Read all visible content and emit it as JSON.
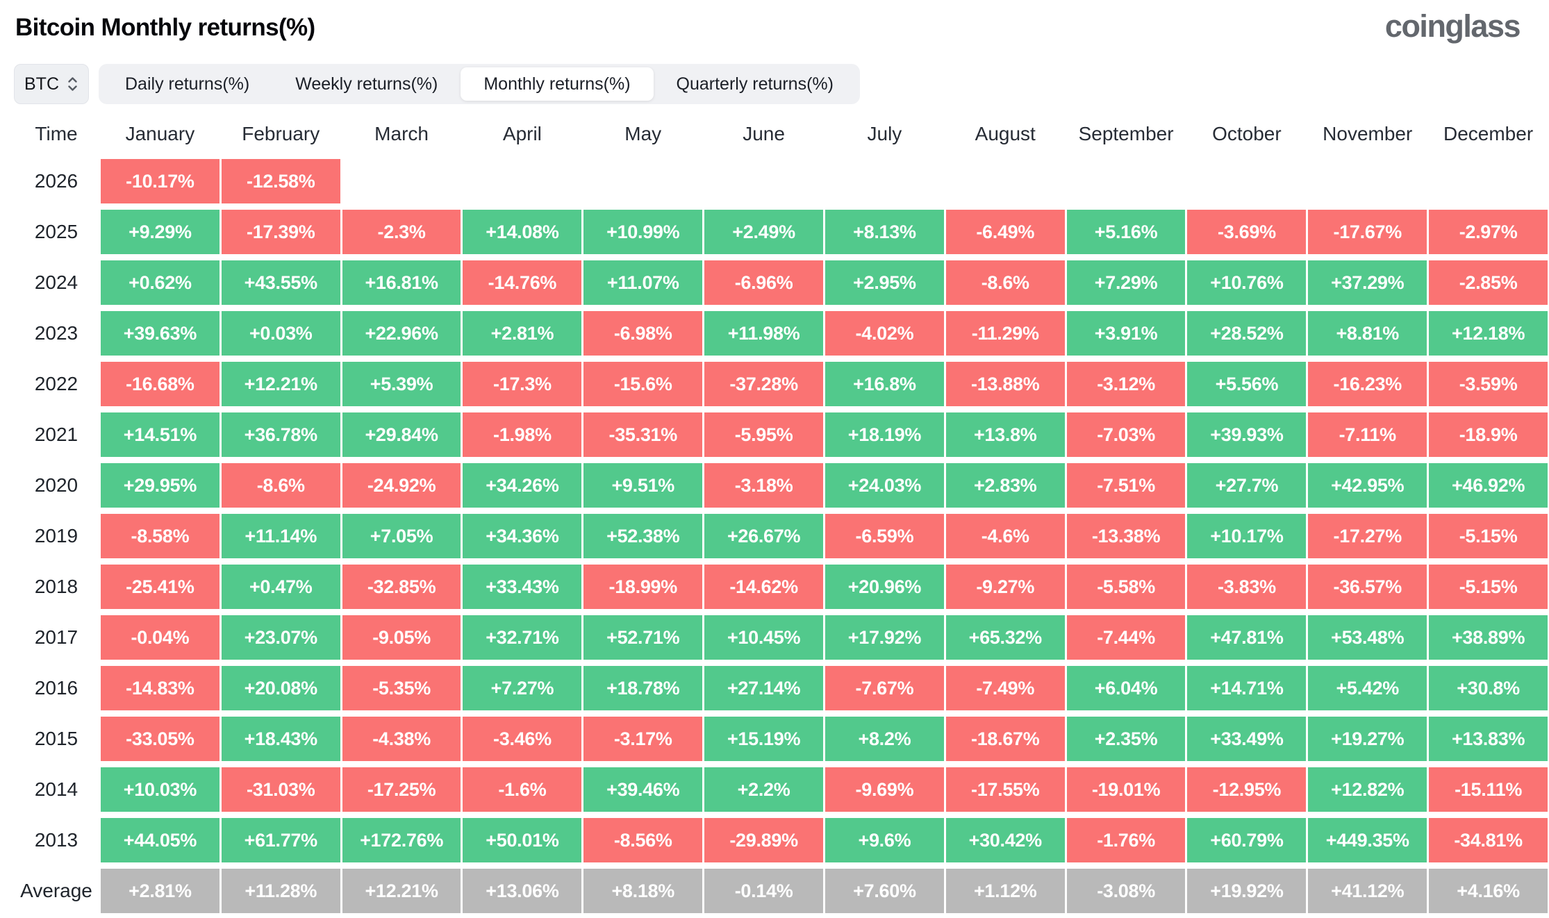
{
  "page": {
    "title": "Bitcoin Monthly returns(%)",
    "logo": "coinglass"
  },
  "controls": {
    "coin_selector": {
      "value": "BTC"
    },
    "tabs": [
      {
        "label": "Daily returns(%)",
        "active": false
      },
      {
        "label": "Weekly returns(%)",
        "active": false
      },
      {
        "label": "Monthly returns(%)",
        "active": true
      },
      {
        "label": "Quarterly returns(%)",
        "active": false
      }
    ]
  },
  "colors": {
    "positive": "#52c98c",
    "negative": "#fa7373",
    "average": "#b9b9b9"
  },
  "table": {
    "columns": [
      "Time",
      "January",
      "February",
      "March",
      "April",
      "May",
      "June",
      "July",
      "August",
      "September",
      "October",
      "November",
      "December"
    ],
    "rows": [
      {
        "label": "2026",
        "cells": [
          {
            "v": "-10.17%",
            "c": "neg"
          },
          {
            "v": "-12.58%",
            "c": "neg"
          },
          null,
          null,
          null,
          null,
          null,
          null,
          null,
          null,
          null,
          null
        ]
      },
      {
        "label": "2025",
        "cells": [
          {
            "v": "+9.29%",
            "c": "pos"
          },
          {
            "v": "-17.39%",
            "c": "neg"
          },
          {
            "v": "-2.3%",
            "c": "neg"
          },
          {
            "v": "+14.08%",
            "c": "pos"
          },
          {
            "v": "+10.99%",
            "c": "pos"
          },
          {
            "v": "+2.49%",
            "c": "pos"
          },
          {
            "v": "+8.13%",
            "c": "pos"
          },
          {
            "v": "-6.49%",
            "c": "neg"
          },
          {
            "v": "+5.16%",
            "c": "pos"
          },
          {
            "v": "-3.69%",
            "c": "neg"
          },
          {
            "v": "-17.67%",
            "c": "neg"
          },
          {
            "v": "-2.97%",
            "c": "neg"
          }
        ]
      },
      {
        "label": "2024",
        "cells": [
          {
            "v": "+0.62%",
            "c": "pos"
          },
          {
            "v": "+43.55%",
            "c": "pos"
          },
          {
            "v": "+16.81%",
            "c": "pos"
          },
          {
            "v": "-14.76%",
            "c": "neg"
          },
          {
            "v": "+11.07%",
            "c": "pos"
          },
          {
            "v": "-6.96%",
            "c": "neg"
          },
          {
            "v": "+2.95%",
            "c": "pos"
          },
          {
            "v": "-8.6%",
            "c": "neg"
          },
          {
            "v": "+7.29%",
            "c": "pos"
          },
          {
            "v": "+10.76%",
            "c": "pos"
          },
          {
            "v": "+37.29%",
            "c": "pos"
          },
          {
            "v": "-2.85%",
            "c": "neg"
          }
        ]
      },
      {
        "label": "2023",
        "cells": [
          {
            "v": "+39.63%",
            "c": "pos"
          },
          {
            "v": "+0.03%",
            "c": "pos"
          },
          {
            "v": "+22.96%",
            "c": "pos"
          },
          {
            "v": "+2.81%",
            "c": "pos"
          },
          {
            "v": "-6.98%",
            "c": "neg"
          },
          {
            "v": "+11.98%",
            "c": "pos"
          },
          {
            "v": "-4.02%",
            "c": "neg"
          },
          {
            "v": "-11.29%",
            "c": "neg"
          },
          {
            "v": "+3.91%",
            "c": "pos"
          },
          {
            "v": "+28.52%",
            "c": "pos"
          },
          {
            "v": "+8.81%",
            "c": "pos"
          },
          {
            "v": "+12.18%",
            "c": "pos"
          }
        ]
      },
      {
        "label": "2022",
        "cells": [
          {
            "v": "-16.68%",
            "c": "neg"
          },
          {
            "v": "+12.21%",
            "c": "pos"
          },
          {
            "v": "+5.39%",
            "c": "pos"
          },
          {
            "v": "-17.3%",
            "c": "neg"
          },
          {
            "v": "-15.6%",
            "c": "neg"
          },
          {
            "v": "-37.28%",
            "c": "neg"
          },
          {
            "v": "+16.8%",
            "c": "pos"
          },
          {
            "v": "-13.88%",
            "c": "neg"
          },
          {
            "v": "-3.12%",
            "c": "neg"
          },
          {
            "v": "+5.56%",
            "c": "pos"
          },
          {
            "v": "-16.23%",
            "c": "neg"
          },
          {
            "v": "-3.59%",
            "c": "neg"
          }
        ]
      },
      {
        "label": "2021",
        "cells": [
          {
            "v": "+14.51%",
            "c": "pos"
          },
          {
            "v": "+36.78%",
            "c": "pos"
          },
          {
            "v": "+29.84%",
            "c": "pos"
          },
          {
            "v": "-1.98%",
            "c": "neg"
          },
          {
            "v": "-35.31%",
            "c": "neg"
          },
          {
            "v": "-5.95%",
            "c": "neg"
          },
          {
            "v": "+18.19%",
            "c": "pos"
          },
          {
            "v": "+13.8%",
            "c": "pos"
          },
          {
            "v": "-7.03%",
            "c": "neg"
          },
          {
            "v": "+39.93%",
            "c": "pos"
          },
          {
            "v": "-7.11%",
            "c": "neg"
          },
          {
            "v": "-18.9%",
            "c": "neg"
          }
        ]
      },
      {
        "label": "2020",
        "cells": [
          {
            "v": "+29.95%",
            "c": "pos"
          },
          {
            "v": "-8.6%",
            "c": "neg"
          },
          {
            "v": "-24.92%",
            "c": "neg"
          },
          {
            "v": "+34.26%",
            "c": "pos"
          },
          {
            "v": "+9.51%",
            "c": "pos"
          },
          {
            "v": "-3.18%",
            "c": "neg"
          },
          {
            "v": "+24.03%",
            "c": "pos"
          },
          {
            "v": "+2.83%",
            "c": "pos"
          },
          {
            "v": "-7.51%",
            "c": "neg"
          },
          {
            "v": "+27.7%",
            "c": "pos"
          },
          {
            "v": "+42.95%",
            "c": "pos"
          },
          {
            "v": "+46.92%",
            "c": "pos"
          }
        ]
      },
      {
        "label": "2019",
        "cells": [
          {
            "v": "-8.58%",
            "c": "neg"
          },
          {
            "v": "+11.14%",
            "c": "pos"
          },
          {
            "v": "+7.05%",
            "c": "pos"
          },
          {
            "v": "+34.36%",
            "c": "pos"
          },
          {
            "v": "+52.38%",
            "c": "pos"
          },
          {
            "v": "+26.67%",
            "c": "pos"
          },
          {
            "v": "-6.59%",
            "c": "neg"
          },
          {
            "v": "-4.6%",
            "c": "neg"
          },
          {
            "v": "-13.38%",
            "c": "neg"
          },
          {
            "v": "+10.17%",
            "c": "pos"
          },
          {
            "v": "-17.27%",
            "c": "neg"
          },
          {
            "v": "-5.15%",
            "c": "neg"
          }
        ]
      },
      {
        "label": "2018",
        "cells": [
          {
            "v": "-25.41%",
            "c": "neg"
          },
          {
            "v": "+0.47%",
            "c": "pos"
          },
          {
            "v": "-32.85%",
            "c": "neg"
          },
          {
            "v": "+33.43%",
            "c": "pos"
          },
          {
            "v": "-18.99%",
            "c": "neg"
          },
          {
            "v": "-14.62%",
            "c": "neg"
          },
          {
            "v": "+20.96%",
            "c": "pos"
          },
          {
            "v": "-9.27%",
            "c": "neg"
          },
          {
            "v": "-5.58%",
            "c": "neg"
          },
          {
            "v": "-3.83%",
            "c": "neg"
          },
          {
            "v": "-36.57%",
            "c": "neg"
          },
          {
            "v": "-5.15%",
            "c": "neg"
          }
        ]
      },
      {
        "label": "2017",
        "cells": [
          {
            "v": "-0.04%",
            "c": "neg"
          },
          {
            "v": "+23.07%",
            "c": "pos"
          },
          {
            "v": "-9.05%",
            "c": "neg"
          },
          {
            "v": "+32.71%",
            "c": "pos"
          },
          {
            "v": "+52.71%",
            "c": "pos"
          },
          {
            "v": "+10.45%",
            "c": "pos"
          },
          {
            "v": "+17.92%",
            "c": "pos"
          },
          {
            "v": "+65.32%",
            "c": "pos"
          },
          {
            "v": "-7.44%",
            "c": "neg"
          },
          {
            "v": "+47.81%",
            "c": "pos"
          },
          {
            "v": "+53.48%",
            "c": "pos"
          },
          {
            "v": "+38.89%",
            "c": "pos"
          }
        ]
      },
      {
        "label": "2016",
        "cells": [
          {
            "v": "-14.83%",
            "c": "neg"
          },
          {
            "v": "+20.08%",
            "c": "pos"
          },
          {
            "v": "-5.35%",
            "c": "neg"
          },
          {
            "v": "+7.27%",
            "c": "pos"
          },
          {
            "v": "+18.78%",
            "c": "pos"
          },
          {
            "v": "+27.14%",
            "c": "pos"
          },
          {
            "v": "-7.67%",
            "c": "neg"
          },
          {
            "v": "-7.49%",
            "c": "neg"
          },
          {
            "v": "+6.04%",
            "c": "pos"
          },
          {
            "v": "+14.71%",
            "c": "pos"
          },
          {
            "v": "+5.42%",
            "c": "pos"
          },
          {
            "v": "+30.8%",
            "c": "pos"
          }
        ]
      },
      {
        "label": "2015",
        "cells": [
          {
            "v": "-33.05%",
            "c": "neg"
          },
          {
            "v": "+18.43%",
            "c": "pos"
          },
          {
            "v": "-4.38%",
            "c": "neg"
          },
          {
            "v": "-3.46%",
            "c": "neg"
          },
          {
            "v": "-3.17%",
            "c": "neg"
          },
          {
            "v": "+15.19%",
            "c": "pos"
          },
          {
            "v": "+8.2%",
            "c": "pos"
          },
          {
            "v": "-18.67%",
            "c": "neg"
          },
          {
            "v": "+2.35%",
            "c": "pos"
          },
          {
            "v": "+33.49%",
            "c": "pos"
          },
          {
            "v": "+19.27%",
            "c": "pos"
          },
          {
            "v": "+13.83%",
            "c": "pos"
          }
        ]
      },
      {
        "label": "2014",
        "cells": [
          {
            "v": "+10.03%",
            "c": "pos"
          },
          {
            "v": "-31.03%",
            "c": "neg"
          },
          {
            "v": "-17.25%",
            "c": "neg"
          },
          {
            "v": "-1.6%",
            "c": "neg"
          },
          {
            "v": "+39.46%",
            "c": "pos"
          },
          {
            "v": "+2.2%",
            "c": "pos"
          },
          {
            "v": "-9.69%",
            "c": "neg"
          },
          {
            "v": "-17.55%",
            "c": "neg"
          },
          {
            "v": "-19.01%",
            "c": "neg"
          },
          {
            "v": "-12.95%",
            "c": "neg"
          },
          {
            "v": "+12.82%",
            "c": "pos"
          },
          {
            "v": "-15.11%",
            "c": "neg"
          }
        ]
      },
      {
        "label": "2013",
        "cells": [
          {
            "v": "+44.05%",
            "c": "pos"
          },
          {
            "v": "+61.77%",
            "c": "pos"
          },
          {
            "v": "+172.76%",
            "c": "pos"
          },
          {
            "v": "+50.01%",
            "c": "pos"
          },
          {
            "v": "-8.56%",
            "c": "neg"
          },
          {
            "v": "-29.89%",
            "c": "neg"
          },
          {
            "v": "+9.6%",
            "c": "pos"
          },
          {
            "v": "+30.42%",
            "c": "pos"
          },
          {
            "v": "-1.76%",
            "c": "neg"
          },
          {
            "v": "+60.79%",
            "c": "pos"
          },
          {
            "v": "+449.35%",
            "c": "pos"
          },
          {
            "v": "-34.81%",
            "c": "neg"
          }
        ]
      },
      {
        "label": "Average",
        "cells": [
          {
            "v": "+2.81%",
            "c": "avg"
          },
          {
            "v": "+11.28%",
            "c": "avg"
          },
          {
            "v": "+12.21%",
            "c": "avg"
          },
          {
            "v": "+13.06%",
            "c": "avg"
          },
          {
            "v": "+8.18%",
            "c": "avg"
          },
          {
            "v": "-0.14%",
            "c": "avg"
          },
          {
            "v": "+7.60%",
            "c": "avg"
          },
          {
            "v": "+1.12%",
            "c": "avg"
          },
          {
            "v": "-3.08%",
            "c": "avg"
          },
          {
            "v": "+19.92%",
            "c": "avg"
          },
          {
            "v": "+41.12%",
            "c": "avg"
          },
          {
            "v": "+4.16%",
            "c": "avg"
          }
        ]
      }
    ]
  }
}
